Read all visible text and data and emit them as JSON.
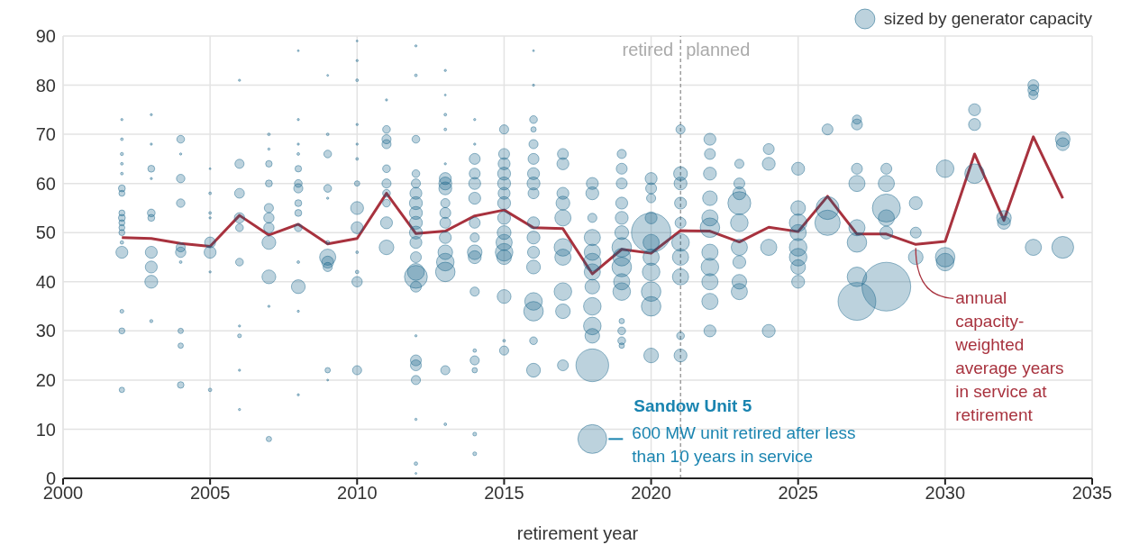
{
  "chart_data": {
    "type": "bubble",
    "xlabel": "retirement year",
    "xlim": [
      2000,
      2035
    ],
    "xticks": [
      2000,
      2005,
      2010,
      2015,
      2020,
      2025,
      2030,
      2035
    ],
    "ylim": [
      0,
      90
    ],
    "yticks": [
      0,
      10,
      20,
      30,
      40,
      50,
      60,
      70,
      80,
      90
    ],
    "grid": true,
    "legend": "top right",
    "ref_lines": [
      {
        "axis": "x",
        "value": 2021,
        "label": null,
        "color": "#888888",
        "line_style": "dashed"
      }
    ],
    "annotations": [
      "retired",
      "planned",
      {
        "text": "Sandow Unit 5",
        "x": 2018,
        "y": 8
      },
      {
        "text": "600 MW unit retired after less than 10 years in service",
        "x": 2018,
        "y": 8
      }
    ],
    "series": [
      {
        "name": "sized by generator capacity",
        "color": "#0e5f86",
        "x": [
          2002,
          2002,
          2002,
          2002,
          2002,
          2002,
          2002,
          2002,
          2002,
          2002,
          2002,
          2002,
          2002,
          2002,
          2002,
          2002,
          2002,
          2003,
          2003,
          2003,
          2003,
          2003,
          2003,
          2003,
          2003,
          2003,
          2003,
          2004,
          2004,
          2004,
          2004,
          2004,
          2004,
          2004,
          2004,
          2004,
          2004,
          2005,
          2005,
          2005,
          2005,
          2005,
          2005,
          2005,
          2005,
          2006,
          2006,
          2006,
          2006,
          2006,
          2006,
          2006,
          2006,
          2006,
          2006,
          2007,
          2007,
          2007,
          2007,
          2007,
          2007,
          2007,
          2007,
          2007,
          2007,
          2007,
          2008,
          2008,
          2008,
          2008,
          2008,
          2008,
          2008,
          2008,
          2008,
          2008,
          2008,
          2008,
          2008,
          2008,
          2009,
          2009,
          2009,
          2009,
          2009,
          2009,
          2009,
          2009,
          2009,
          2009,
          2009,
          2010,
          2010,
          2010,
          2010,
          2010,
          2010,
          2010,
          2010,
          2010,
          2010,
          2010,
          2010,
          2010,
          2011,
          2011,
          2011,
          2011,
          2011,
          2011,
          2011,
          2011,
          2011,
          2011,
          2012,
          2012,
          2012,
          2012,
          2012,
          2012,
          2012,
          2012,
          2012,
          2012,
          2012,
          2012,
          2012,
          2012,
          2012,
          2012,
          2012,
          2012,
          2012,
          2012,
          2012,
          2012,
          2013,
          2013,
          2013,
          2013,
          2013,
          2013,
          2013,
          2013,
          2013,
          2013,
          2013,
          2013,
          2013,
          2013,
          2013,
          2013,
          2013,
          2014,
          2014,
          2014,
          2014,
          2014,
          2014,
          2014,
          2014,
          2014,
          2014,
          2014,
          2014,
          2014,
          2014,
          2014,
          2014,
          2015,
          2015,
          2015,
          2015,
          2015,
          2015,
          2015,
          2015,
          2015,
          2015,
          2015,
          2015,
          2015,
          2015,
          2015,
          2016,
          2016,
          2016,
          2016,
          2016,
          2016,
          2016,
          2016,
          2016,
          2016,
          2016,
          2016,
          2016,
          2016,
          2016,
          2016,
          2016,
          2017,
          2017,
          2017,
          2017,
          2017,
          2017,
          2017,
          2017,
          2017,
          2017,
          2018,
          2018,
          2018,
          2018,
          2018,
          2018,
          2018,
          2018,
          2018,
          2018,
          2018,
          2018,
          2018,
          2019,
          2019,
          2019,
          2019,
          2019,
          2019,
          2019,
          2019,
          2019,
          2019,
          2019,
          2019,
          2019,
          2019,
          2019,
          2020,
          2020,
          2020,
          2020,
          2020,
          2020,
          2020,
          2020,
          2020,
          2020,
          2020,
          2021,
          2021,
          2021,
          2021,
          2021,
          2021,
          2021,
          2021,
          2021,
          2021,
          2022,
          2022,
          2022,
          2022,
          2022,
          2022,
          2022,
          2022,
          2022,
          2022,
          2022,
          2023,
          2023,
          2023,
          2023,
          2023,
          2023,
          2023,
          2023,
          2023,
          2024,
          2024,
          2024,
          2024,
          2025,
          2025,
          2025,
          2025,
          2025,
          2025,
          2025,
          2025,
          2026,
          2026,
          2026,
          2027,
          2027,
          2027,
          2027,
          2027,
          2027,
          2027,
          2027,
          2028,
          2028,
          2028,
          2028,
          2028,
          2028,
          2029,
          2029,
          2029,
          2030,
          2030,
          2030,
          2031,
          2031,
          2031,
          2032,
          2032,
          2033,
          2033,
          2033,
          2033,
          2034,
          2034,
          2034
        ],
        "values": [
          73,
          69,
          66,
          64,
          62,
          59,
          58,
          54,
          53,
          52,
          51,
          50,
          48,
          46,
          34,
          30,
          18,
          74,
          68,
          63,
          61,
          54,
          53,
          46,
          43,
          40,
          32,
          69,
          66,
          61,
          56,
          47,
          46,
          44,
          30,
          27,
          19,
          63,
          58,
          54,
          53,
          48,
          46,
          42,
          18,
          81,
          64,
          58,
          53,
          51,
          44,
          31,
          29,
          22,
          14,
          70,
          67,
          64,
          60,
          55,
          53,
          51,
          48,
          41,
          35,
          8,
          87,
          73,
          68,
          66,
          63,
          60,
          59,
          56,
          54,
          51,
          44,
          39,
          34,
          17,
          82,
          70,
          66,
          59,
          57,
          48,
          45,
          44,
          43,
          22,
          20,
          89,
          85,
          81,
          72,
          68,
          65,
          60,
          55,
          51,
          46,
          42,
          40,
          22,
          77,
          71,
          69,
          68,
          63,
          60,
          58,
          56,
          52,
          47,
          88,
          82,
          69,
          62,
          60,
          58,
          56,
          54,
          52,
          50,
          48,
          45,
          42,
          41,
          39,
          29,
          24,
          23,
          20,
          12,
          3,
          1,
          83,
          78,
          74,
          71,
          64,
          61,
          60,
          59,
          56,
          54,
          52,
          49,
          46,
          44,
          42,
          22,
          11,
          73,
          68,
          65,
          62,
          60,
          57,
          52,
          49,
          46,
          45,
          38,
          26,
          24,
          22,
          9,
          5,
          71,
          66,
          64,
          62,
          60,
          58,
          56,
          53,
          50,
          48,
          46,
          45,
          37,
          28,
          26,
          87,
          80,
          73,
          71,
          68,
          65,
          62,
          60,
          58,
          52,
          49,
          46,
          43,
          36,
          34,
          28,
          22,
          66,
          64,
          58,
          56,
          53,
          47,
          45,
          38,
          34,
          23,
          60,
          58,
          53,
          49,
          46,
          44,
          42,
          39,
          35,
          31,
          29,
          23,
          8,
          66,
          63,
          60,
          56,
          53,
          50,
          47,
          45,
          43,
          40,
          38,
          32,
          30,
          28,
          27,
          61,
          59,
          57,
          53,
          50,
          48,
          45,
          42,
          38,
          35,
          25,
          71,
          62,
          60,
          56,
          52,
          48,
          45,
          41,
          29,
          25,
          69,
          66,
          62,
          57,
          53,
          51,
          46,
          43,
          40,
          36,
          30,
          64,
          60,
          58,
          56,
          52,
          47,
          44,
          40,
          38,
          67,
          64,
          47,
          30,
          63,
          55,
          52,
          50,
          47,
          45,
          43,
          40,
          71,
          55,
          52,
          73,
          72,
          63,
          60,
          51,
          48,
          41,
          36,
          63,
          60,
          55,
          53,
          50,
          39,
          56,
          50,
          45,
          63,
          45,
          44,
          75,
          72,
          62,
          53,
          52,
          80,
          79,
          78,
          47,
          69,
          68,
          47
        ],
        "sizes": [
          0.002,
          0.003,
          0.004,
          0.003,
          0.003,
          0.02,
          0.015,
          0.015,
          0.02,
          0.015,
          0.015,
          0.015,
          0.005,
          0.06,
          0.006,
          0.015,
          0.012,
          0.002,
          0.002,
          0.02,
          0.002,
          0.025,
          0.02,
          0.06,
          0.06,
          0.07,
          0.004,
          0.025,
          0.002,
          0.03,
          0.03,
          0.035,
          0.045,
          0.003,
          0.012,
          0.012,
          0.018,
          0.001,
          0.003,
          0.003,
          0.002,
          0.05,
          0.06,
          0.002,
          0.005,
          0.002,
          0.035,
          0.04,
          0.045,
          0.025,
          0.025,
          0.002,
          0.006,
          0.002,
          0.002,
          0.003,
          0.002,
          0.018,
          0.02,
          0.035,
          0.045,
          0.045,
          0.08,
          0.08,
          0.002,
          0.012,
          0.001,
          0.002,
          0.002,
          0.003,
          0.018,
          0.025,
          0.035,
          0.02,
          0.02,
          0.025,
          0.003,
          0.08,
          0.002,
          0.002,
          0.001,
          0.003,
          0.025,
          0.025,
          0.002,
          0.006,
          0.11,
          0.06,
          0.035,
          0.012,
          0.001,
          0.001,
          0.002,
          0.003,
          0.002,
          0.002,
          0.003,
          0.012,
          0.07,
          0.06,
          0.003,
          0.005,
          0.045,
          0.035,
          0.002,
          0.025,
          0.035,
          0.035,
          0.025,
          0.035,
          0.025,
          0.025,
          0.06,
          0.09,
          0.002,
          0.003,
          0.025,
          0.025,
          0.035,
          0.06,
          0.07,
          0.07,
          0.07,
          0.07,
          0.06,
          0.05,
          0.12,
          0.22,
          0.05,
          0.002,
          0.05,
          0.05,
          0.035,
          0.002,
          0.005,
          0.001,
          0.002,
          0.001,
          0.003,
          0.003,
          0.002,
          0.06,
          0.07,
          0.07,
          0.035,
          0.05,
          0.05,
          0.06,
          0.09,
          0.13,
          0.16,
          0.035,
          0.003,
          0.002,
          0.002,
          0.05,
          0.05,
          0.06,
          0.06,
          0.05,
          0.035,
          0.09,
          0.07,
          0.035,
          0.005,
          0.035,
          0.012,
          0.006,
          0.006,
          0.035,
          0.05,
          0.06,
          0.07,
          0.07,
          0.06,
          0.07,
          0.07,
          0.08,
          0.11,
          0.13,
          0.09,
          0.08,
          0.003,
          0.035,
          0.001,
          0.002,
          0.025,
          0.012,
          0.035,
          0.05,
          0.06,
          0.07,
          0.05,
          0.06,
          0.07,
          0.06,
          0.08,
          0.13,
          0.16,
          0.025,
          0.08,
          0.05,
          0.06,
          0.06,
          0.08,
          0.11,
          0.13,
          0.11,
          0.13,
          0.09,
          0.05,
          0.06,
          0.07,
          0.035,
          0.11,
          0.11,
          0.13,
          0.11,
          0.09,
          0.13,
          0.13,
          0.09,
          0.45,
          0.35,
          0.035,
          0.05,
          0.05,
          0.06,
          0.07,
          0.08,
          0.16,
          0.13,
          0.16,
          0.11,
          0.13,
          0.012,
          0.025,
          0.025,
          0.012,
          0.06,
          0.05,
          0.035,
          0.06,
          0.65,
          0.11,
          0.11,
          0.13,
          0.16,
          0.16,
          0.09,
          0.035,
          0.08,
          0.07,
          0.06,
          0.05,
          0.13,
          0.11,
          0.11,
          0.025,
          0.07,
          0.06,
          0.05,
          0.07,
          0.09,
          0.11,
          0.16,
          0.11,
          0.13,
          0.11,
          0.11,
          0.06,
          0.035,
          0.05,
          0.07,
          0.22,
          0.13,
          0.11,
          0.07,
          0.09,
          0.11,
          0.05,
          0.07,
          0.11,
          0.07,
          0.07,
          0.09,
          0.13,
          0.11,
          0.13,
          0.13,
          0.09,
          0.07,
          0.05,
          0.22,
          0.27,
          0.035,
          0.05,
          0.05,
          0.11,
          0.11,
          0.16,
          0.16,
          0.6,
          0.05,
          0.11,
          0.33,
          0.11,
          0.07,
          1,
          0.07,
          0.05,
          0.09,
          0.13,
          0.16,
          0.13,
          0.06,
          0.06,
          0.16,
          0.09,
          0.07,
          0.05,
          0.05,
          0.035,
          0.11,
          0.09,
          0.07,
          0.2
        ]
      },
      {
        "type": "line",
        "name": "annual capacity-weighted average years in service at retirement",
        "color": "#a8323e",
        "x": [
          2002,
          2003,
          2004,
          2005,
          2006,
          2007,
          2008,
          2009,
          2010,
          2011,
          2012,
          2013,
          2014,
          2015,
          2016,
          2017,
          2018,
          2019,
          2020,
          2021,
          2022,
          2023,
          2024,
          2025,
          2026,
          2027,
          2028,
          2029,
          2030,
          2031,
          2032,
          2033,
          2034
        ],
        "values": [
          49,
          48.8,
          47.8,
          47.2,
          53.5,
          49.5,
          51.7,
          47.7,
          48.8,
          58,
          49.8,
          50.3,
          53.4,
          54.6,
          51,
          50.8,
          41.6,
          46.6,
          45.8,
          50.4,
          50.3,
          48.1,
          51.1,
          50.2,
          57.4,
          49.7,
          49.7,
          47.6,
          48.2,
          66,
          52.5,
          69.5,
          57
        ]
      }
    ]
  }
}
